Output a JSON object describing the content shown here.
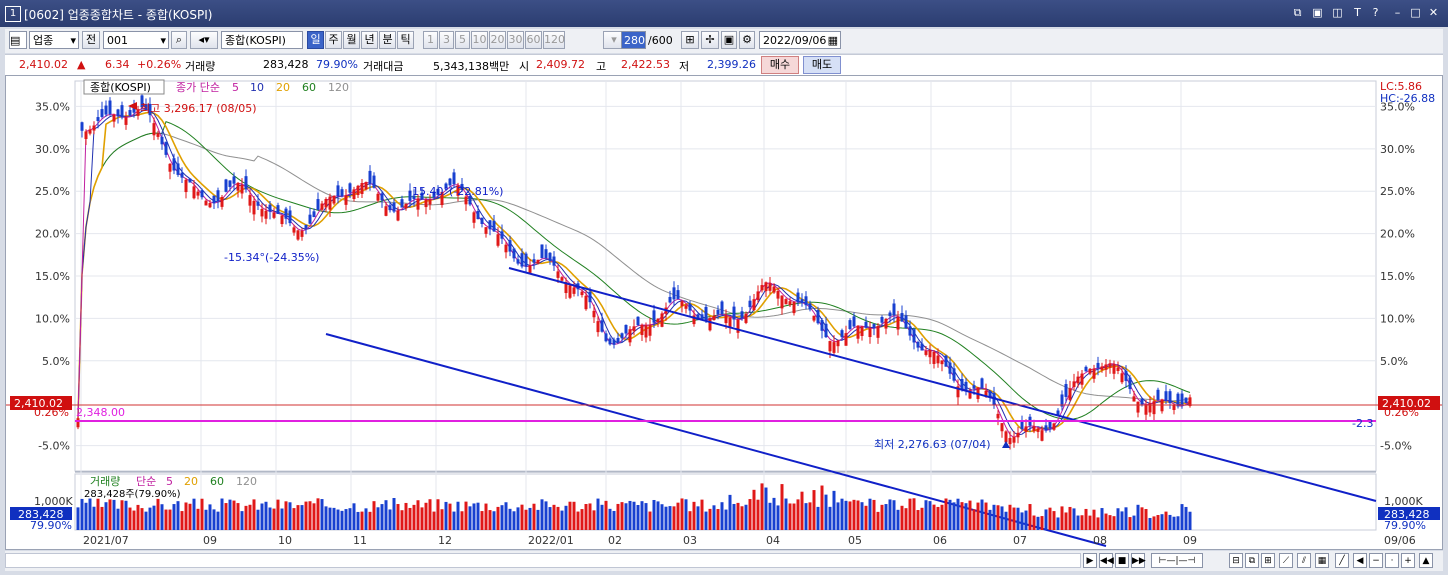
{
  "window": {
    "number": "1",
    "title": "[0602] 업종종합차트 - 종합(KOSPI)"
  },
  "toolbar": {
    "type_select": "업종",
    "prev_label": "전",
    "code_value": "001",
    "index_name": "종합(KOSPI)",
    "periods": [
      "일",
      "주",
      "월",
      "년",
      "분",
      "틱"
    ],
    "minutes": [
      "1",
      "3",
      "5",
      "10",
      "20",
      "30",
      "60",
      "120"
    ],
    "count_value": "280",
    "count_total": "/600",
    "date_value": "2022/09/06"
  },
  "pricebar": {
    "price": "2,410.02",
    "change": "6.34",
    "change_pct": "+0.26%",
    "volume_label": "거래량",
    "volume": "283,428",
    "volume_ratio": "79.90%",
    "amount_label": "거래대금",
    "amount": "5,343,138백만",
    "open_label": "시",
    "open": "2,409.72",
    "high_label": "고",
    "high": "2,422.53",
    "low_label": "저",
    "low": "2,399.26",
    "buy_label": "매수",
    "sell_label": "매도"
  },
  "chart": {
    "legend_name": "종합(KOSPI)",
    "legend_ma_label": "종가 단순",
    "legend_ma": [
      "5",
      "10",
      "20",
      "60",
      "120"
    ],
    "high_note": "최고 3,296.17 (08/05)",
    "low_note": "최저 2,276.63 (07/04)",
    "lc": "LC:5.86",
    "hc": "HC:-26.88",
    "line1_label": "-15.40°(-22.81%)",
    "line2_label": "-15.34°(-24.35%)",
    "hline_label": "2,348.00",
    "hline_right": "-2.3",
    "price_tag": "2,410.02",
    "pct_tag": "0.26%",
    "y_ticks": [
      "35.0%",
      "30.0%",
      "25.0%",
      "20.0%",
      "15.0%",
      "10.0%",
      "5.0%",
      "-5.0%"
    ],
    "vol_legend": "거래량",
    "vol_ma_label": "단순",
    "vol_ma": [
      "5",
      "20",
      "60",
      "120"
    ],
    "vol_value": "283,428주(79.90%)",
    "vol_tick": "1,000K",
    "vol_tag": "283,428",
    "vol_pct": "79.90%",
    "x_ticks": [
      "2021/07",
      "09",
      "10",
      "11",
      "12",
      "2022/01",
      "02",
      "03",
      "04",
      "05",
      "06",
      "07",
      "08",
      "09"
    ],
    "x_last": "09/06"
  },
  "chart_data": {
    "type": "candlestick",
    "title": "종합(KOSPI)",
    "x": [
      "2021/07",
      "2021/08",
      "2021/09",
      "2021/10",
      "2021/11",
      "2021/12",
      "2022/01",
      "2022/02",
      "2022/03",
      "2022/04",
      "2022/05",
      "2022/06",
      "2022/07",
      "2022/08",
      "2022/09"
    ],
    "close_pct": [
      34.5,
      33.0,
      25.5,
      22.0,
      24.0,
      25.0,
      18.0,
      9.0,
      10.0,
      12.5,
      9.0,
      7.5,
      -4.5,
      3.5,
      0.26
    ],
    "ylim": [
      -8,
      38
    ],
    "y_unit": "%",
    "colors": {
      "up": "#e01818",
      "down": "#1840d0",
      "ma5": "#c020a0",
      "ma10": "#2030b0",
      "ma20": "#e0a000",
      "ma60": "#208020",
      "ma120": "#909090"
    }
  }
}
